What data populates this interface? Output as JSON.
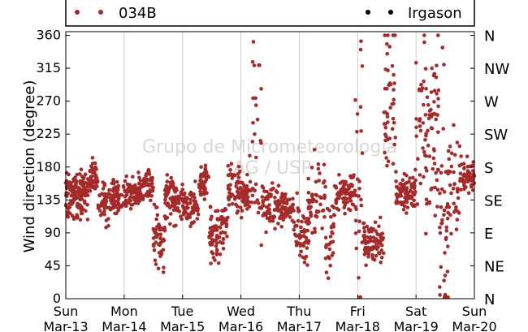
{
  "chart_data": {
    "type": "scatter",
    "title": "",
    "ylabel": "Wind direction (degree)",
    "xlabel": "",
    "ylim": [
      0,
      365
    ],
    "yticks": [
      0,
      45,
      90,
      135,
      180,
      225,
      270,
      315,
      360
    ],
    "y2ticks": [
      {
        "value": 0,
        "label": "N"
      },
      {
        "value": 45,
        "label": "NE"
      },
      {
        "value": 90,
        "label": "E"
      },
      {
        "value": 135,
        "label": "SE"
      },
      {
        "value": 180,
        "label": "S"
      },
      {
        "value": 225,
        "label": "SW"
      },
      {
        "value": 270,
        "label": "W"
      },
      {
        "value": 315,
        "label": "NW"
      },
      {
        "value": 360,
        "label": "N"
      }
    ],
    "x_range_days": [
      "Mar-13",
      "Mar-20"
    ],
    "xticks": [
      {
        "day": "Sun",
        "date": "Mar-13"
      },
      {
        "day": "Mon",
        "date": "Mar-14"
      },
      {
        "day": "Tue",
        "date": "Mar-15"
      },
      {
        "day": "Wed",
        "date": "Mar-16"
      },
      {
        "day": "Thu",
        "date": "Mar-17"
      },
      {
        "day": "Fri",
        "date": "Mar-18"
      },
      {
        "day": "Sat",
        "date": "Mar-19"
      },
      {
        "day": "Sun",
        "date": "Mar-20"
      }
    ],
    "grid": "vertical",
    "legend_placement": "top",
    "watermark": [
      "Grupo de Micrometeorologia",
      "IAG / USP"
    ],
    "series": [
      {
        "name": "034B",
        "color": "#a52a2a",
        "marker": "dot",
        "segments": [
          {
            "t0": 0.0,
            "t1": 0.28,
            "center": 140,
            "spread": 18,
            "n": 110
          },
          {
            "t0": 0.28,
            "t1": 0.4,
            "center": 150,
            "spread": 15,
            "n": 40
          },
          {
            "t0": 0.4,
            "t1": 0.55,
            "center": 165,
            "spread": 12,
            "n": 45
          },
          {
            "t0": 0.55,
            "t1": 0.75,
            "center": 130,
            "spread": 12,
            "n": 55
          },
          {
            "t0": 0.75,
            "t1": 1.0,
            "center": 140,
            "spread": 12,
            "n": 70
          },
          {
            "t0": 1.0,
            "t1": 1.35,
            "center": 145,
            "spread": 10,
            "n": 90
          },
          {
            "t0": 1.35,
            "t1": 1.5,
            "center": 155,
            "spread": 10,
            "n": 40
          },
          {
            "t0": 1.5,
            "t1": 1.7,
            "center": 85,
            "spread": 20,
            "n": 55
          },
          {
            "t0": 1.7,
            "t1": 2.0,
            "center": 135,
            "spread": 15,
            "n": 75
          },
          {
            "t0": 2.0,
            "t1": 2.28,
            "center": 125,
            "spread": 12,
            "n": 70
          },
          {
            "t0": 2.28,
            "t1": 2.45,
            "center": 160,
            "spread": 12,
            "n": 45
          },
          {
            "t0": 2.45,
            "t1": 2.6,
            "center": 80,
            "spread": 22,
            "n": 45
          },
          {
            "t0": 2.6,
            "t1": 2.78,
            "center": 100,
            "spread": 20,
            "n": 40
          },
          {
            "t0": 2.78,
            "t1": 3.0,
            "center": 155,
            "spread": 15,
            "n": 55
          },
          {
            "t0": 3.0,
            "t1": 3.15,
            "center": 140,
            "spread": 10,
            "n": 40
          },
          {
            "t0": 3.15,
            "t1": 3.35,
            "center": 170,
            "spread": 80,
            "n": 30
          },
          {
            "t0": 3.35,
            "t1": 3.65,
            "center": 125,
            "spread": 15,
            "n": 65
          },
          {
            "t0": 3.65,
            "t1": 3.9,
            "center": 125,
            "spread": 10,
            "n": 60
          },
          {
            "t0": 3.9,
            "t1": 4.15,
            "center": 90,
            "spread": 20,
            "n": 55
          },
          {
            "t0": 4.15,
            "t1": 4.45,
            "center": 120,
            "spread": 30,
            "n": 55
          },
          {
            "t0": 4.45,
            "t1": 4.6,
            "center": 80,
            "spread": 25,
            "n": 30
          },
          {
            "t0": 4.6,
            "t1": 4.95,
            "center": 145,
            "spread": 12,
            "n": 80
          },
          {
            "t0": 4.95,
            "t1": 5.1,
            "center": 150,
            "spread": 90,
            "n": 30
          },
          {
            "t0": 5.1,
            "t1": 5.45,
            "center": 75,
            "spread": 15,
            "n": 80
          },
          {
            "t0": 5.45,
            "t1": 5.65,
            "center": 280,
            "spread": 60,
            "n": 45
          },
          {
            "t0": 5.65,
            "t1": 6.0,
            "center": 145,
            "spread": 12,
            "n": 85
          },
          {
            "t0": 6.0,
            "t1": 6.4,
            "center": 240,
            "spread": 70,
            "n": 90
          },
          {
            "t0": 6.4,
            "t1": 6.55,
            "center": 120,
            "spread": 90,
            "n": 40
          },
          {
            "t0": 6.55,
            "t1": 6.75,
            "center": 150,
            "spread": 40,
            "n": 35
          },
          {
            "t0": 6.75,
            "t1": 7.0,
            "center": 165,
            "spread": 12,
            "n": 55
          }
        ]
      },
      {
        "name": "Irgason",
        "color": "#000000",
        "marker": "dot",
        "segments": []
      }
    ]
  }
}
